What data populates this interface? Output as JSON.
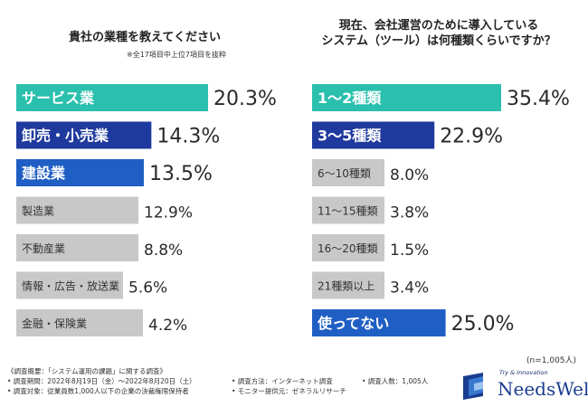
{
  "chart_data": [
    {
      "type": "bar",
      "orientation": "horizontal",
      "title": "貴社の業種を教えてください",
      "note": "※全17項目中上位7項目を抜粋",
      "unit": "%",
      "categories": [
        "サービス業",
        "卸売・小売業",
        "建設業",
        "製造業",
        "不動産業",
        "情報・広告・放送業",
        "金融・保険業"
      ],
      "values": [
        20.3,
        14.3,
        13.5,
        12.9,
        8.8,
        5.6,
        4.2
      ],
      "value_labels": [
        "20.3%",
        "14.3%",
        "13.5%",
        "12.9%",
        "8.8%",
        "5.6%",
        "4.2%"
      ],
      "bar_colors": [
        "#2bbfad",
        "#1f3a9e",
        "#1f5fc4",
        "#c8c8c8",
        "#c8c8c8",
        "#c8c8c8",
        "#c8c8c8"
      ],
      "label_colors": [
        "#ffffff",
        "#ffffff",
        "#ffffff",
        "#333333",
        "#333333",
        "#333333",
        "#333333"
      ]
    },
    {
      "type": "bar",
      "orientation": "horizontal",
      "title": "現在、会社運営のために導入しているシステム（ツール）は何種類くらいですか？",
      "title_lines": [
        "現在、会社運営のために導入している",
        "システム（ツール）は何種類くらいですか？"
      ],
      "unit": "%",
      "categories": [
        "1〜2種類",
        "3〜5種類",
        "6〜10種類",
        "11〜15種類",
        "16〜20種類",
        "21種類以上",
        "使ってない"
      ],
      "values": [
        35.4,
        22.9,
        8.0,
        3.8,
        1.5,
        3.4,
        25.0
      ],
      "value_labels": [
        "35.4%",
        "22.9%",
        "8.0%",
        "3.8%",
        "1.5%",
        "3.4%",
        "25.0%"
      ],
      "bar_colors": [
        "#2bbfad",
        "#1f3a9e",
        "#c8c8c8",
        "#c8c8c8",
        "#c8c8c8",
        "#c8c8c8",
        "#1f5fc4"
      ],
      "label_colors": [
        "#ffffff",
        "#ffffff",
        "#333333",
        "#333333",
        "#333333",
        "#333333",
        "#ffffff"
      ]
    }
  ],
  "sample_size": "(n=1,005人)",
  "footer": {
    "survey_overview": "《調査概要：「システム運用の課題」に関する調査》",
    "period": "• 調査期間：2022年8月19日（金）〜2022年8月20日（土）",
    "target": "• 調査対象：従業員数1,000人以下の企業の決裁権限保持者",
    "method": "• 調査方法：インターネット調査",
    "monitor": "• モニター提供元：ゼネラルリサーチ",
    "respondents": "• 調査人数：1,005人"
  },
  "logo": {
    "tagline": "Try & Innovation",
    "name": "NeedsWell"
  },
  "colors": {
    "teal": "#2bbfad",
    "navy": "#1f3a9e",
    "blue": "#1f5fc4",
    "gray": "#c8c8c8"
  }
}
